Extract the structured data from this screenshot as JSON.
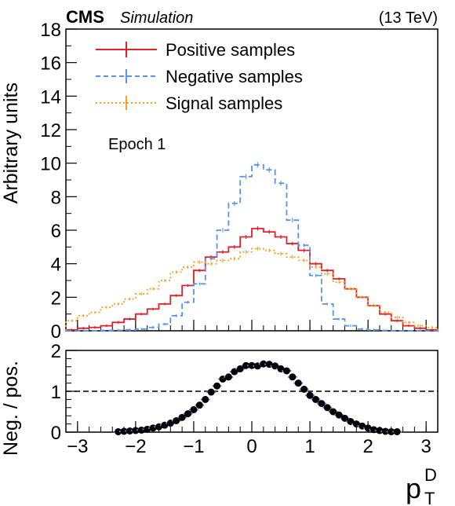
{
  "header": {
    "cms": "CMS",
    "simulation": "Simulation",
    "energy": "(13 TeV)"
  },
  "annotation": "Epoch 1",
  "colors": {
    "positive": "#e0202a",
    "negative": "#5b93e6",
    "signal": "#f5a020",
    "ratio_marker": "#000000",
    "ratio_error": "#5b93e6"
  },
  "chart_data": [
    {
      "type": "line",
      "style": "step histogram",
      "ylabel": "Arbitrary units",
      "xlim": [
        -3.2,
        3.2
      ],
      "ylim": [
        0,
        18
      ],
      "yticks": [
        0,
        2,
        4,
        6,
        8,
        10,
        12,
        14,
        16,
        18
      ],
      "xticks": [
        -3,
        -2,
        -1,
        0,
        1,
        2,
        3
      ],
      "bin_edges": [
        -3.2,
        -3.0,
        -2.8,
        -2.6,
        -2.4,
        -2.2,
        -2.0,
        -1.8,
        -1.6,
        -1.4,
        -1.2,
        -1.0,
        -0.8,
        -0.6,
        -0.4,
        -0.2,
        0.0,
        0.2,
        0.4,
        0.6,
        0.8,
        1.0,
        1.2,
        1.4,
        1.6,
        1.8,
        2.0,
        2.2,
        2.4,
        2.6,
        2.8,
        3.0,
        3.2
      ],
      "legend_position": "top-left",
      "series": [
        {
          "name": "Positive samples",
          "line": "solid",
          "color_key": "positive",
          "values": [
            0.05,
            0.15,
            0.2,
            0.3,
            0.5,
            0.7,
            1.0,
            1.3,
            1.6,
            2.1,
            2.7,
            3.6,
            4.4,
            4.7,
            5.0,
            5.6,
            6.1,
            5.9,
            5.6,
            5.2,
            4.8,
            4.0,
            3.6,
            3.1,
            2.5,
            2.0,
            1.5,
            1.0,
            0.6,
            0.3,
            0.15,
            0.05
          ]
        },
        {
          "name": "Negative samples",
          "line": "dashed",
          "color_key": "negative",
          "values": [
            0.0,
            0.0,
            0.0,
            0.02,
            0.03,
            0.05,
            0.1,
            0.2,
            0.4,
            0.9,
            1.7,
            2.8,
            4.3,
            6.0,
            7.6,
            9.2,
            9.9,
            9.6,
            8.8,
            6.6,
            5.1,
            3.3,
            1.6,
            0.7,
            0.3,
            0.1,
            0.05,
            0.02,
            0.0,
            0.0,
            0.0,
            0.0
          ]
        },
        {
          "name": "Signal samples",
          "line": "dash-dot",
          "color_key": "signal",
          "values": [
            0.6,
            0.9,
            1.1,
            1.4,
            1.6,
            1.9,
            2.2,
            2.5,
            3.0,
            3.5,
            3.8,
            4.1,
            4.0,
            4.2,
            4.3,
            4.7,
            4.9,
            4.8,
            4.6,
            4.4,
            4.2,
            3.8,
            3.4,
            2.9,
            2.5,
            2.0,
            1.5,
            1.1,
            0.8,
            0.5,
            0.3,
            0.2
          ]
        }
      ]
    },
    {
      "type": "scatter",
      "xlabel_main": "p",
      "xlabel_sup": "D",
      "xlabel_sub": "T",
      "ylabel": "Neg. / pos.",
      "xlim": [
        -3.2,
        3.2
      ],
      "ylim": [
        0,
        2
      ],
      "yticks": [
        0,
        1,
        2
      ],
      "xticks": [
        -3,
        -2,
        -1,
        0,
        1,
        2,
        3
      ],
      "reference_line": 1,
      "x": [
        -2.3,
        -2.2,
        -2.1,
        -2.0,
        -1.9,
        -1.8,
        -1.7,
        -1.6,
        -1.5,
        -1.4,
        -1.3,
        -1.2,
        -1.1,
        -1.0,
        -0.9,
        -0.8,
        -0.7,
        -0.6,
        -0.5,
        -0.4,
        -0.3,
        -0.2,
        -0.1,
        0.0,
        0.1,
        0.2,
        0.3,
        0.4,
        0.5,
        0.6,
        0.7,
        0.8,
        0.9,
        1.0,
        1.1,
        1.2,
        1.3,
        1.4,
        1.5,
        1.6,
        1.7,
        1.8,
        1.9,
        2.0,
        2.1,
        2.2,
        2.3,
        2.4,
        2.5
      ],
      "y": [
        0.01,
        0.02,
        0.03,
        0.04,
        0.05,
        0.07,
        0.1,
        0.13,
        0.17,
        0.22,
        0.28,
        0.36,
        0.45,
        0.55,
        0.66,
        0.8,
        0.98,
        1.13,
        1.3,
        1.35,
        1.48,
        1.55,
        1.63,
        1.63,
        1.62,
        1.67,
        1.66,
        1.62,
        1.55,
        1.5,
        1.35,
        1.2,
        1.05,
        0.9,
        0.8,
        0.7,
        0.6,
        0.5,
        0.42,
        0.34,
        0.26,
        0.2,
        0.15,
        0.1,
        0.06,
        0.04,
        0.02,
        0.01,
        0.01
      ]
    }
  ]
}
